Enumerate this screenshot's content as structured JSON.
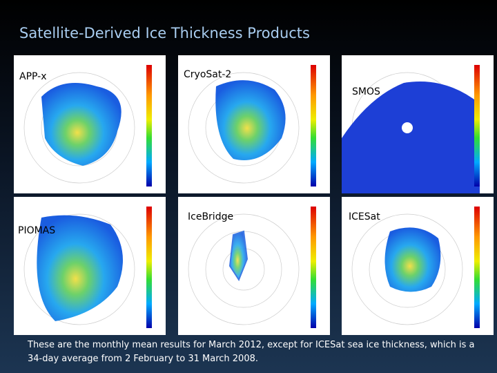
{
  "title": "Satellite-Derived Ice Thickness Products",
  "panels": [
    {
      "label": "APP-x"
    },
    {
      "label": "CryoSat-2"
    },
    {
      "label": "SMOS"
    },
    {
      "label": "PIOMAS"
    },
    {
      "label": "IceBridge"
    },
    {
      "label": "ICESat"
    }
  ],
  "caption": "These are the monthly mean results for March 2012, except for ICESat sea ice thickness, which is a 34-day average from 2 February to 31 March 2008."
}
